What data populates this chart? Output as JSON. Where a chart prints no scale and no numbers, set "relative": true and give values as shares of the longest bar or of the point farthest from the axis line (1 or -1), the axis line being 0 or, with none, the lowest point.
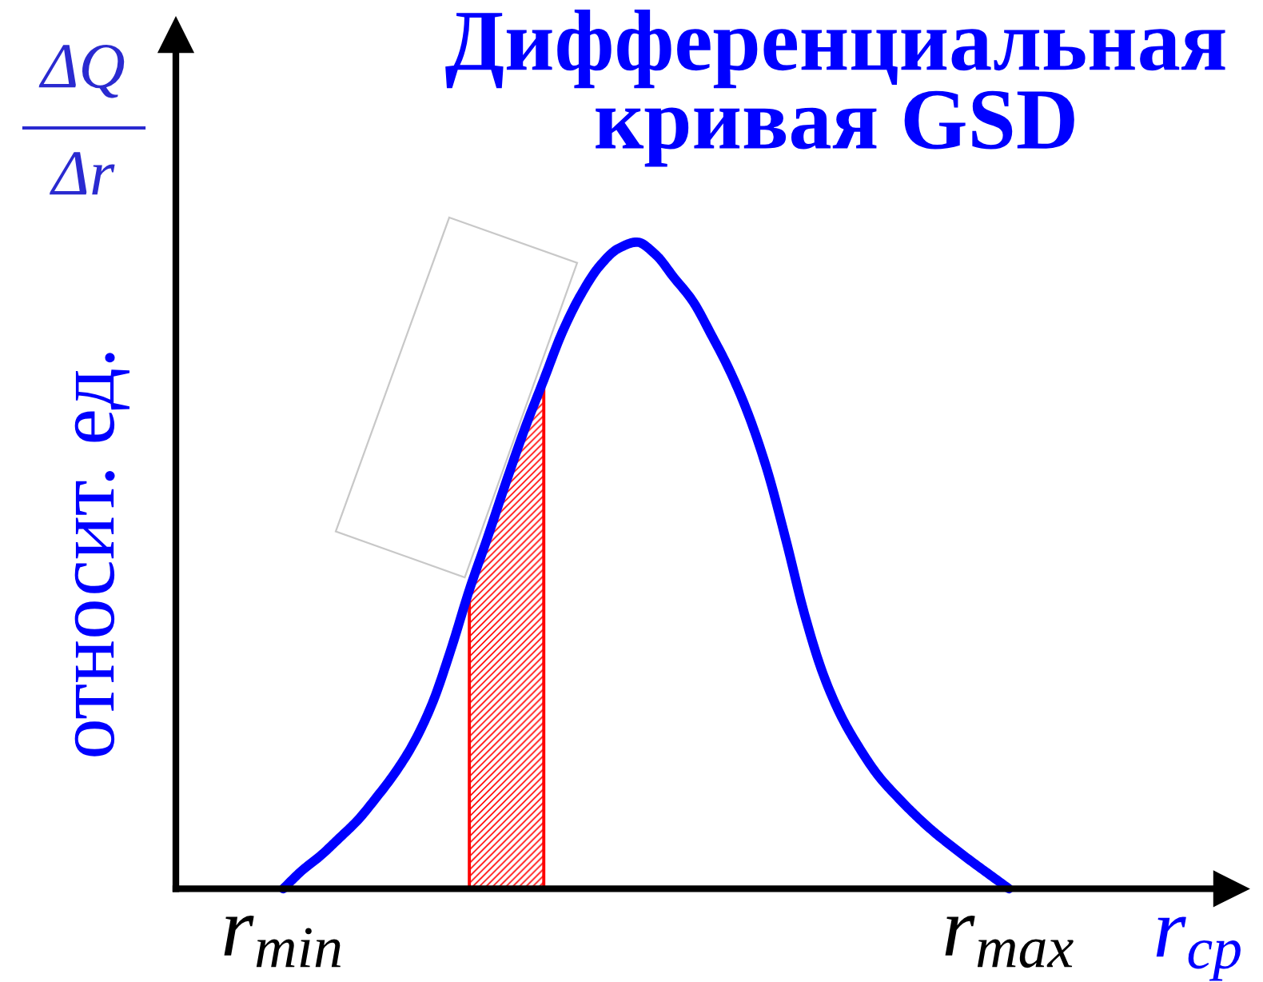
{
  "chart_data": {
    "type": "line",
    "title": "Дифференциальная\nкривая GSD",
    "xlabel": "r$_{ср}$",
    "ylabel": "относит. ед.",
    "annotations": [
      "ΔQ",
      "Δr"
    ],
    "categories": [
      "r$_{min}$",
      null,
      null,
      null,
      null,
      null,
      null,
      null,
      null,
      null,
      null,
      null,
      null,
      null,
      null,
      null,
      null,
      null,
      null,
      null,
      null,
      null,
      null,
      null,
      null,
      null,
      null,
      null,
      null,
      null,
      null,
      null,
      null,
      null,
      null,
      null,
      null,
      null,
      null,
      "r$_{max}$"
    ],
    "relative": true,
    "line_style": "solid",
    "series": [
      {
        "color": "#0000ff",
        "values": [
          0,
          0.028,
          0.051,
          0.078,
          0.106,
          0.141,
          0.179,
          0.225,
          0.286,
          0.369,
          0.462,
          0.545,
          0.631,
          0.713,
          0.787,
          0.861,
          0.919,
          0.963,
          0.99,
          1,
          0.981,
          0.945,
          0.909,
          0.857,
          0.801,
          0.733,
          0.648,
          0.541,
          0.426,
          0.333,
          0.266,
          0.216,
          0.174,
          0.142,
          0.113,
          0.087,
          0.064,
          0.042,
          0.021,
          0
        ]
      },
      {
        "type": "area",
        "color": "#ff0000",
        "values": [
          null,
          null,
          null,
          null,
          null,
          null,
          null,
          null,
          null,
          null,
          0.462,
          0.545,
          0.631,
          0.713,
          0.787,
          null,
          null,
          null,
          null,
          null,
          null,
          null,
          null,
          null,
          null,
          null,
          null,
          null,
          null,
          null,
          null,
          null,
          null,
          null,
          null,
          null,
          null,
          null,
          null,
          null
        ]
      }
    ]
  }
}
